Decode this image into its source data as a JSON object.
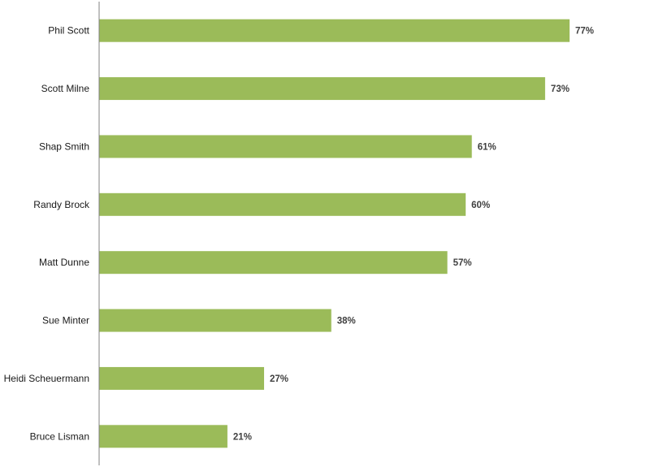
{
  "chart_data": {
    "type": "bar",
    "orientation": "horizontal",
    "categories": [
      "Phil Scott",
      "Scott Milne",
      "Shap Smith",
      "Randy Brock",
      "Matt Dunne",
      "Sue Minter",
      "Heidi Scheuermann",
      "Bruce Lisman"
    ],
    "values": [
      77,
      73,
      61,
      60,
      57,
      38,
      27,
      21
    ],
    "value_labels": [
      "77%",
      "73%",
      "61%",
      "60%",
      "57%",
      "38%",
      "27%",
      "21%"
    ],
    "unit": "%",
    "xlim": [
      0,
      90
    ],
    "grid": false,
    "legend": "none",
    "bar_color": "#9bbb59",
    "axis_color": "#808080"
  }
}
